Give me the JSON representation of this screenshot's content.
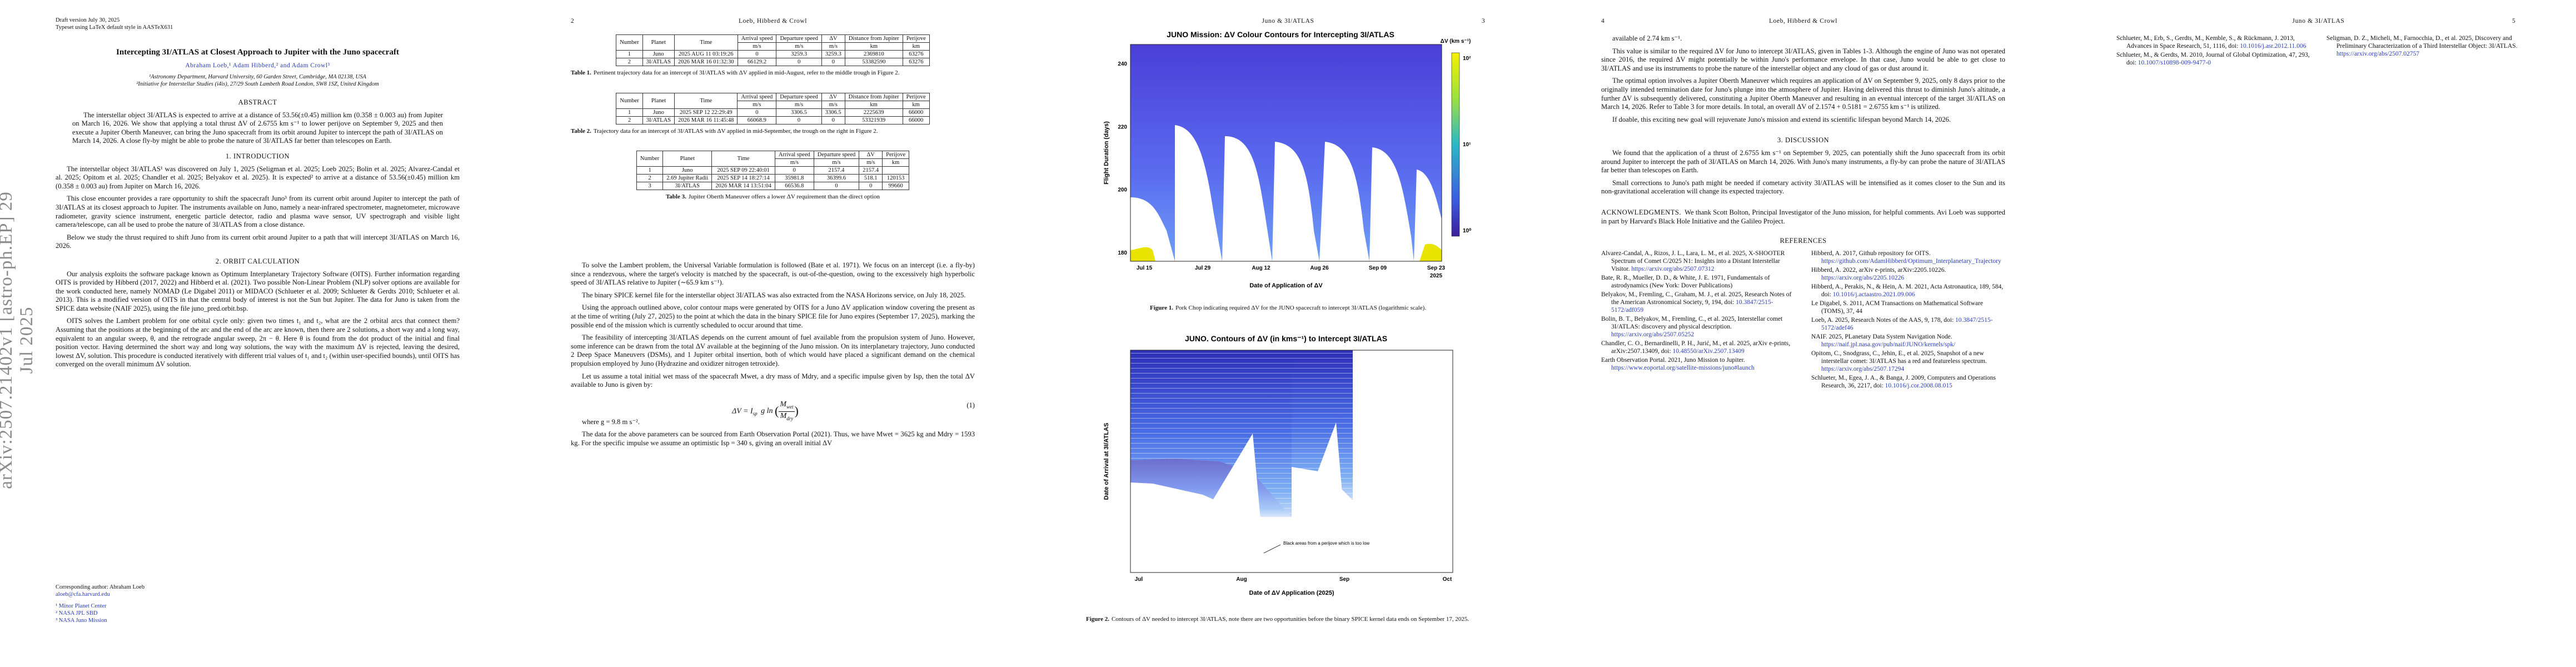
{
  "page1": {
    "draft": "Draft version July 30, 2025",
    "typeset": "Typeset using LaTeX default style in AASTeX631",
    "arxiv": "arXiv:2507.21402v1  [astro-ph.EP]  29 Jul 2025",
    "title": "Intercepting 3I/ATLAS at Closest Approach to Jupiter with the Juno spacecraft",
    "authors": "Abraham Loeb,¹ Adam Hibberd,² and Adam Crowl³",
    "affiliations": [
      "¹Astronomy Department, Harvard University, 60 Garden Street, Cambridge, MA 02138, USA",
      "²Initiative for Interstellar Studies (i4is), 27/29 South Lambeth Road London, SW8 1SZ, United Kingdom"
    ],
    "abstract_heading": "ABSTRACT",
    "abstract": "The interstellar object 3I/ATLAS is expected to arrive at a distance of 53.56(±0.45) million km (0.358 ± 0.003 au) from Jupiter on March 16, 2026. We show that applying a total thrust ΔV of 2.6755 km s⁻¹ to lower perijove on September 9, 2025 and then execute a Jupiter Oberth Maneuver, can bring the Juno spacecraft from its orbit around Jupiter to intercept the path of 3I/ATLAS on March 14, 2026. A close fly-by might be able to probe the nature of 3I/ATLAS far better than telescopes on Earth.",
    "intro_heading": "1. INTRODUCTION",
    "intro": [
      "The interstellar object 3I/ATLAS¹ was discovered on July 1, 2025 (Seligman et al. 2025; Loeb 2025; Bolin et al. 2025; Alvarez-Candal et al. 2025; Opitom et al. 2025; Chandler et al. 2025; Belyakov et al. 2025). It is expected² to arrive at a distance of 53.56(±0.45) million km (0.358 ± 0.003 au) from Jupiter on March 16, 2026.",
      "This close encounter provides a rare opportunity to shift the spacecraft Juno³ from its current orbit around Jupiter to intercept the path of 3I/ATLAS at its closest approach to Jupiter. The instruments available on Juno, namely a near-infrared spectrometer, magnetometer, microwave radiometer, gravity science instrument, energetic particle detector, radio and plasma wave sensor, UV spectrograph and visible light camera/telescope, can all be used to probe the nature of 3I/ATLAS from a close distance.",
      "Below we study the thrust required to shift Juno from its current orbit around Jupiter to a path that will intercept 3I/ATLAS on March 16, 2026."
    ],
    "orbit_heading": "2. ORBIT CALCULATION",
    "orbit": [
      "Our analysis exploits the software package known as Optimum Interplanetary Trajectory Software (OITS). Further information regarding OITS is provided by Hibberd (2017, 2022) and Hibberd et al. (2021). Two possible Non-Linear Problem (NLP) solver options are available for the work conducted here, namely NOMAD (Le Digabel 2011) or MIDACO (Schlueter et al. 2009; Schlueter & Gerdts 2010; Schlueter et al. 2013). This is a modified version of OITS in that the central body of interest is not the Sun but Jupiter. The data for Juno is taken from the SPICE data website (NAIF 2025), using the file juno_pred.orbit.bsp.",
      "OITS solves the Lambert problem for one orbital cycle only: given two times t₁ and t₂, what are the 2 orbital arcs that connect them? Assuming that the positions at the beginning of the arc and the end of the arc are known, then there are 2 solutions, a short way and a long way, equivalent to an angular sweep, θ, and the retrograde angular sweep, 2π − θ. Here θ is found from the dot product of the initial and final position vector. Having determined the short way and long way solutions, the way with the maximum ΔV is rejected, leaving the desired, lowest ΔV, solution. This procedure is conducted iteratively with different trial values of t₁ and t₂ (within user-specified bounds), until OITS has converged on the overall minimum ΔV solution."
    ],
    "corresponding": "Corresponding author: Abraham Loeb",
    "email": "aloeb@cfa.harvard.edu",
    "footnotes": [
      "¹ Minor Planet Center",
      "² NASA JPL SBD",
      "³ NASA Juno Mission"
    ]
  },
  "page2": {
    "number": "2",
    "running_head": "Loeb, Hibberd & Crowl",
    "table1": {
      "header": [
        "Number",
        "Planet",
        "Time",
        {
          "name": "Arrival speed",
          "unit": "m/s"
        },
        {
          "name": "Departure speed",
          "unit": "m/s"
        },
        {
          "name": "ΔV",
          "unit": "m/s"
        },
        {
          "name": "Distance from Jupiter",
          "unit": "km"
        },
        {
          "name": "Perijove",
          "unit": "km"
        }
      ],
      "rows": [
        [
          1,
          "Juno",
          "2025 AUG 11 03:19:26",
          0,
          3259.3,
          3259.3,
          2369810,
          63276
        ],
        [
          2,
          "3I/ATLAS",
          "2026 MAR 16 01:32:30",
          66129.2,
          0,
          0,
          53382590,
          63276
        ]
      ],
      "label": "Table 1.",
      "caption": "Pertinent trajectory data for an intercept of 3I/ATLAS with ΔV applied in mid-August, refer to the middle trough in Figure 2."
    },
    "table2": {
      "header": [
        "Number",
        "Planet",
        "Time",
        {
          "name": "Arrival speed",
          "unit": "m/s"
        },
        {
          "name": "Departure speed",
          "unit": "m/s"
        },
        {
          "name": "ΔV",
          "unit": "m/s"
        },
        {
          "name": "Distance from Jupiter",
          "unit": "km"
        },
        {
          "name": "Perijove",
          "unit": "km"
        }
      ],
      "rows": [
        [
          1,
          "Juno",
          "2025 SEP 12 22:29:49",
          0,
          3306.5,
          3306.5,
          2225639,
          66000
        ],
        [
          2,
          "3I/ATLAS",
          "2026 MAR 16 11:45:48",
          66068.9,
          0,
          0,
          53321939,
          66000
        ]
      ],
      "label": "Table 2.",
      "caption": "Trajectory data for an intercept of 3I/ATLAS with ΔV applied in mid-September, the trough on the right in Figure 2."
    },
    "table3": {
      "header": [
        "Number",
        "Planet",
        "Time",
        {
          "name": "Arrival speed",
          "unit": "m/s"
        },
        {
          "name": "Departure speed",
          "unit": "m/s"
        },
        {
          "name": "ΔV",
          "unit": "m/s"
        },
        {
          "name": "Perijove",
          "unit": "km"
        }
      ],
      "rows": [
        [
          1,
          "Juno",
          "2025 SEP 09 22:40:01",
          0,
          2157.4,
          2157.4,
          null
        ],
        [
          2,
          "2.69 Jupiter Radii",
          "2025 SEP 14 18:27:14",
          35981.8,
          36399.6,
          518.1,
          120153
        ],
        [
          3,
          "3I/ATLAS",
          "2026 MAR 14 13:51:04",
          66536.8,
          0,
          0,
          99660
        ]
      ],
      "label": "Table 3.",
      "caption": "Jupiter Oberth Maneuver offers a lower ΔV requirement than the direct option"
    },
    "paragraphs": [
      "To solve the Lambert problem, the Universal Variable formulation is followed (Bate et al. 1971). We focus on an intercept (i.e. a fly-by) since a rendezvous, where the target's velocity is matched by the spacecraft, is out-of-the-question, owing to the excessively high hyperbolic speed of 3I/ATLAS relative to Jupiter (∼65.9 km s⁻¹).",
      "The binary SPICE kernel file for the interstellar object 3I/ATLAS was also extracted from the NASA Horizons service, on July 18, 2025.",
      "Using the approach outlined above, color contour maps were generated by OITS for a Juno ΔV application window covering the present as at the time of writing (July 27, 2025) to the point at which the data in the binary SPICE file for Juno expires (September 17, 2025), marking the possible end of the mission which is currently scheduled to occur around that time.",
      "The feasibility of intercepting 3I/ATLAS depends on the current amount of fuel available from the propulsion system of Juno. However, some inference can be drawn from the total ΔV available at the beginning of the Juno mission. On its interplanetary trajectory, Juno conducted 2 Deep Space Maneuvers (DSMs), and 1 Jupiter orbital insertion, both of which would have placed a significant demand on the chemical propulsion employed by Juno (Hydrazine and oxidizer nitrogen tetroxide).",
      "Let us assume a total initial wet mass of the spacecraft Mwet, a dry mass of Mdry, and a specific impulse given by Isp, then the total ΔV available to Juno is given by:"
    ],
    "equation": {
      "lhs": "ΔV = I",
      "lhs_sub": "sp",
      "mid": "g ln",
      "num": "M",
      "num_sub": "wet",
      "den": "M",
      "den_sub": "dry",
      "number": "(1)"
    },
    "after_eq": [
      "where g = 9.8 m s⁻².",
      "The data for the above parameters can be sourced from Earth Observation Portal (2021). Thus, we have Mwet = 3625 kg and Mdry = 1593 kg. For the specific impulse we assume an optimistic Isp = 340 s, giving an overall initial ΔV"
    ]
  },
  "page3": {
    "running_head": "Juno & 3I/ATLAS",
    "number": "3",
    "figure1": {
      "title": "JUNO Mission: ΔV Colour Contours for Intercepting 3I/ATLAS",
      "ylabel": "Flight Duration (days)",
      "xlabel": "Date of Application of ΔV",
      "yticks": [
        "180",
        "200",
        "220",
        "240"
      ],
      "xticks": [
        "Jul 15",
        "Jul 29",
        "Aug 12",
        "Aug 26",
        "Sep 09",
        "Sep 23"
      ],
      "year": "2025",
      "colorbar_label": "ΔV (km s⁻¹)",
      "colorbar_ticks": [
        "10²",
        "10¹",
        "10⁰"
      ],
      "label": "Figure 1.",
      "caption": "Pork Chop indicating required ΔV for the JUNO spacecraft to intercept 3I/ATLAS (logarithmic scale)."
    },
    "figure2": {
      "title": "JUNO. Contours of ΔV (in kms⁻¹) to Intercept 3I/ATLAS",
      "ylabel": "Date of Arrival at 3I/ATLAS",
      "xlabel": "Date of ΔV Application (2025)",
      "xticks": [
        "Jul",
        "Aug",
        "Sep",
        "Oct"
      ],
      "annotation": "Black areas from a perijove which is too low",
      "label": "Figure 2.",
      "caption": "Contours of ΔV needed to intercept 3I/ATLAS, note there are two opportunities before the binary SPICE kernel data ends on September 17, 2025."
    }
  },
  "page4": {
    "number": "4",
    "running_head": "Loeb, Hibberd & Crowl",
    "paragraphs": [
      "available of 2.74 km s⁻¹.",
      "This value is similar to the required ΔV for Juno to intercept 3I/ATLAS, given in Tables 1-3. Although the engine of Juno was not operated since 2016, the required ΔV might potentially be within Juno's performance envelope. In that case, Juno would be able to get close to 3I/ATLAS and use its instruments to probe the nature of the interstellar object and any cloud of gas or dust around it.",
      "The optimal option involves a Jupiter Oberth Maneuver which requires an application of ΔV on September 9, 2025, only 8 days prior to the originally intended termination date for Juno's plunge into the atmosphere of Jupiter. Having delivered this thrust to diminish Juno's altitude, a further ΔV is subsequently delivered, constituting a Jupiter Oberth Maneuver and resulting in an eventual intercept of the target 3I/ATLAS on March 14, 2026. Refer to Table 3 for more details. In total, an overall ΔV of 2.1574 + 0.5181 = 2.6755 km s⁻¹ is utilized.",
      "If doable, this exciting new goal will rejuvenate Juno's mission and extend its scientific lifespan beyond March 14, 2026."
    ],
    "discussion_heading": "3. DISCUSSION",
    "discussion": [
      "We found that the application of a thrust of 2.6755 km s⁻¹ on September 9, 2025, can potentially shift the Juno spacecraft from its orbit around Jupiter to intercept the path of 3I/ATLAS on March 14, 2026. With Juno's many instruments, a fly-by can probe the nature of 3I/ATLAS far better than telescopes on Earth.",
      "Small corrections to Juno's path might be needed if cometary activity 3I/ATLAS will be intensified as it comes closer to the Sun and its non-gravitational acceleration will change its expected trajectory."
    ],
    "ack_heading": "ACKNOWLEDGMENTS.",
    "ack": "We thank Scott Bolton, Principal Investigator of the Juno mission, for helpful comments. Avi Loeb was supported in part by Harvard's Black Hole Initiative and the Galileo Project.",
    "references_heading": "REFERENCES",
    "refs_left": [
      {
        "text": "Alvarez-Candal, A., Rizos, J. L., Lara, L. M., et al. 2025, X-SHOOTER Spectrum of Comet C/2025 N1: Insights into a Distant Interstellar Visitor.",
        "link": "https://arxiv.org/abs/2507.07312"
      },
      {
        "text": "Bate, R. R., Mueller, D. D., & White, J. E. 1971, Fundamentals of astrodynamics (New York: Dover Publications)"
      },
      {
        "text": "Belyakov, M., Fremling, C., Graham, M. J., et al. 2025, Research Notes of the American Astronomical Society, 9, 194, doi:",
        "link": "10.3847/2515-5172/adf059"
      },
      {
        "text": "Bolin, B. T., Belyakov, M., Fremling, C., et al. 2025, Interstellar comet 3I/ATLAS: discovery and physical description.",
        "link": "https://arxiv.org/abs/2507.05252"
      },
      {
        "text": "Chandler, C. O., Bernardinelli, P. H., Jurić, M., et al. 2025, arXiv e-prints, arXiv:2507.13409, doi:",
        "link": "10.48550/arXiv.2507.13409"
      },
      {
        "text": "Earth Observation Portal. 2021, Juno Mission to Jupiter.",
        "link": "https://www.eoportal.org/satellite-missions/juno#launch"
      }
    ],
    "refs_right": [
      {
        "text": "Hibberd, A. 2017, Github repository for OITS.",
        "link": "https://github.com/AdamHibberd/Optimum_Interplanetary_Trajectory"
      },
      {
        "text": "Hibberd, A. 2022, arXiv e-prints, arXiv:2205.10226.",
        "link": "https://arxiv.org/abs/2205.10226"
      },
      {
        "text": "Hibberd, A., Perakis, N., & Hein, A. M. 2021, Acta Astronautica, 189, 584, doi:",
        "link": "10.1016/j.actaastro.2021.09.006"
      },
      {
        "text": "Le Digabel, S. 2011, ACM Transactions on Mathematical Software (TOMS), 37, 44"
      },
      {
        "text": "Loeb, A. 2025, Research Notes of the AAS, 9, 178, doi:",
        "link": "10.3847/2515-5172/adef46"
      },
      {
        "text": "NAIF. 2025, PLanetary Data System Navigation Node.",
        "link": "https://naif.jpl.nasa.gov/pub/naif/JUNO/kernels/spk/"
      },
      {
        "text": "Opitom, C., Snodgrass, C., Jehin, E., et al. 2025, Snapshot of a new interstellar comet: 3I/ATLAS has a red and featureless spectrum.",
        "link": "https://arxiv.org/abs/2507.17294"
      },
      {
        "text": "Schlueter, M., Egea, J. A., & Banga, J. 2009, Computers and Operations Research, 36, 2217, doi:",
        "link": "10.1016/j.cor.2008.08.015"
      }
    ]
  },
  "page5": {
    "running_head": "Juno & 3I/ATLAS",
    "number": "5",
    "refs_left": [
      {
        "text": "Schlueter, M., Erb, S., Gerdts, M., Kemble, S., & Rückmann, J. 2013, Advances in Space Research, 51, 1116, doi:",
        "link": "10.1016/j.asr.2012.11.006"
      },
      {
        "text": "Schlueter, M., & Gerdts, M. 2010, Journal of Global Optimization, 47, 293, doi:",
        "link": "10.1007/s10898-009-9477-0"
      }
    ],
    "refs_right": [
      {
        "text": "Seligman, D. Z., Micheli, M., Farnocchia, D., et al. 2025, Discovery and Preliminary Characterization of a Third Interstellar Object: 3I/ATLAS.",
        "link": "https://arxiv.org/abs/2507.02757"
      }
    ]
  }
}
